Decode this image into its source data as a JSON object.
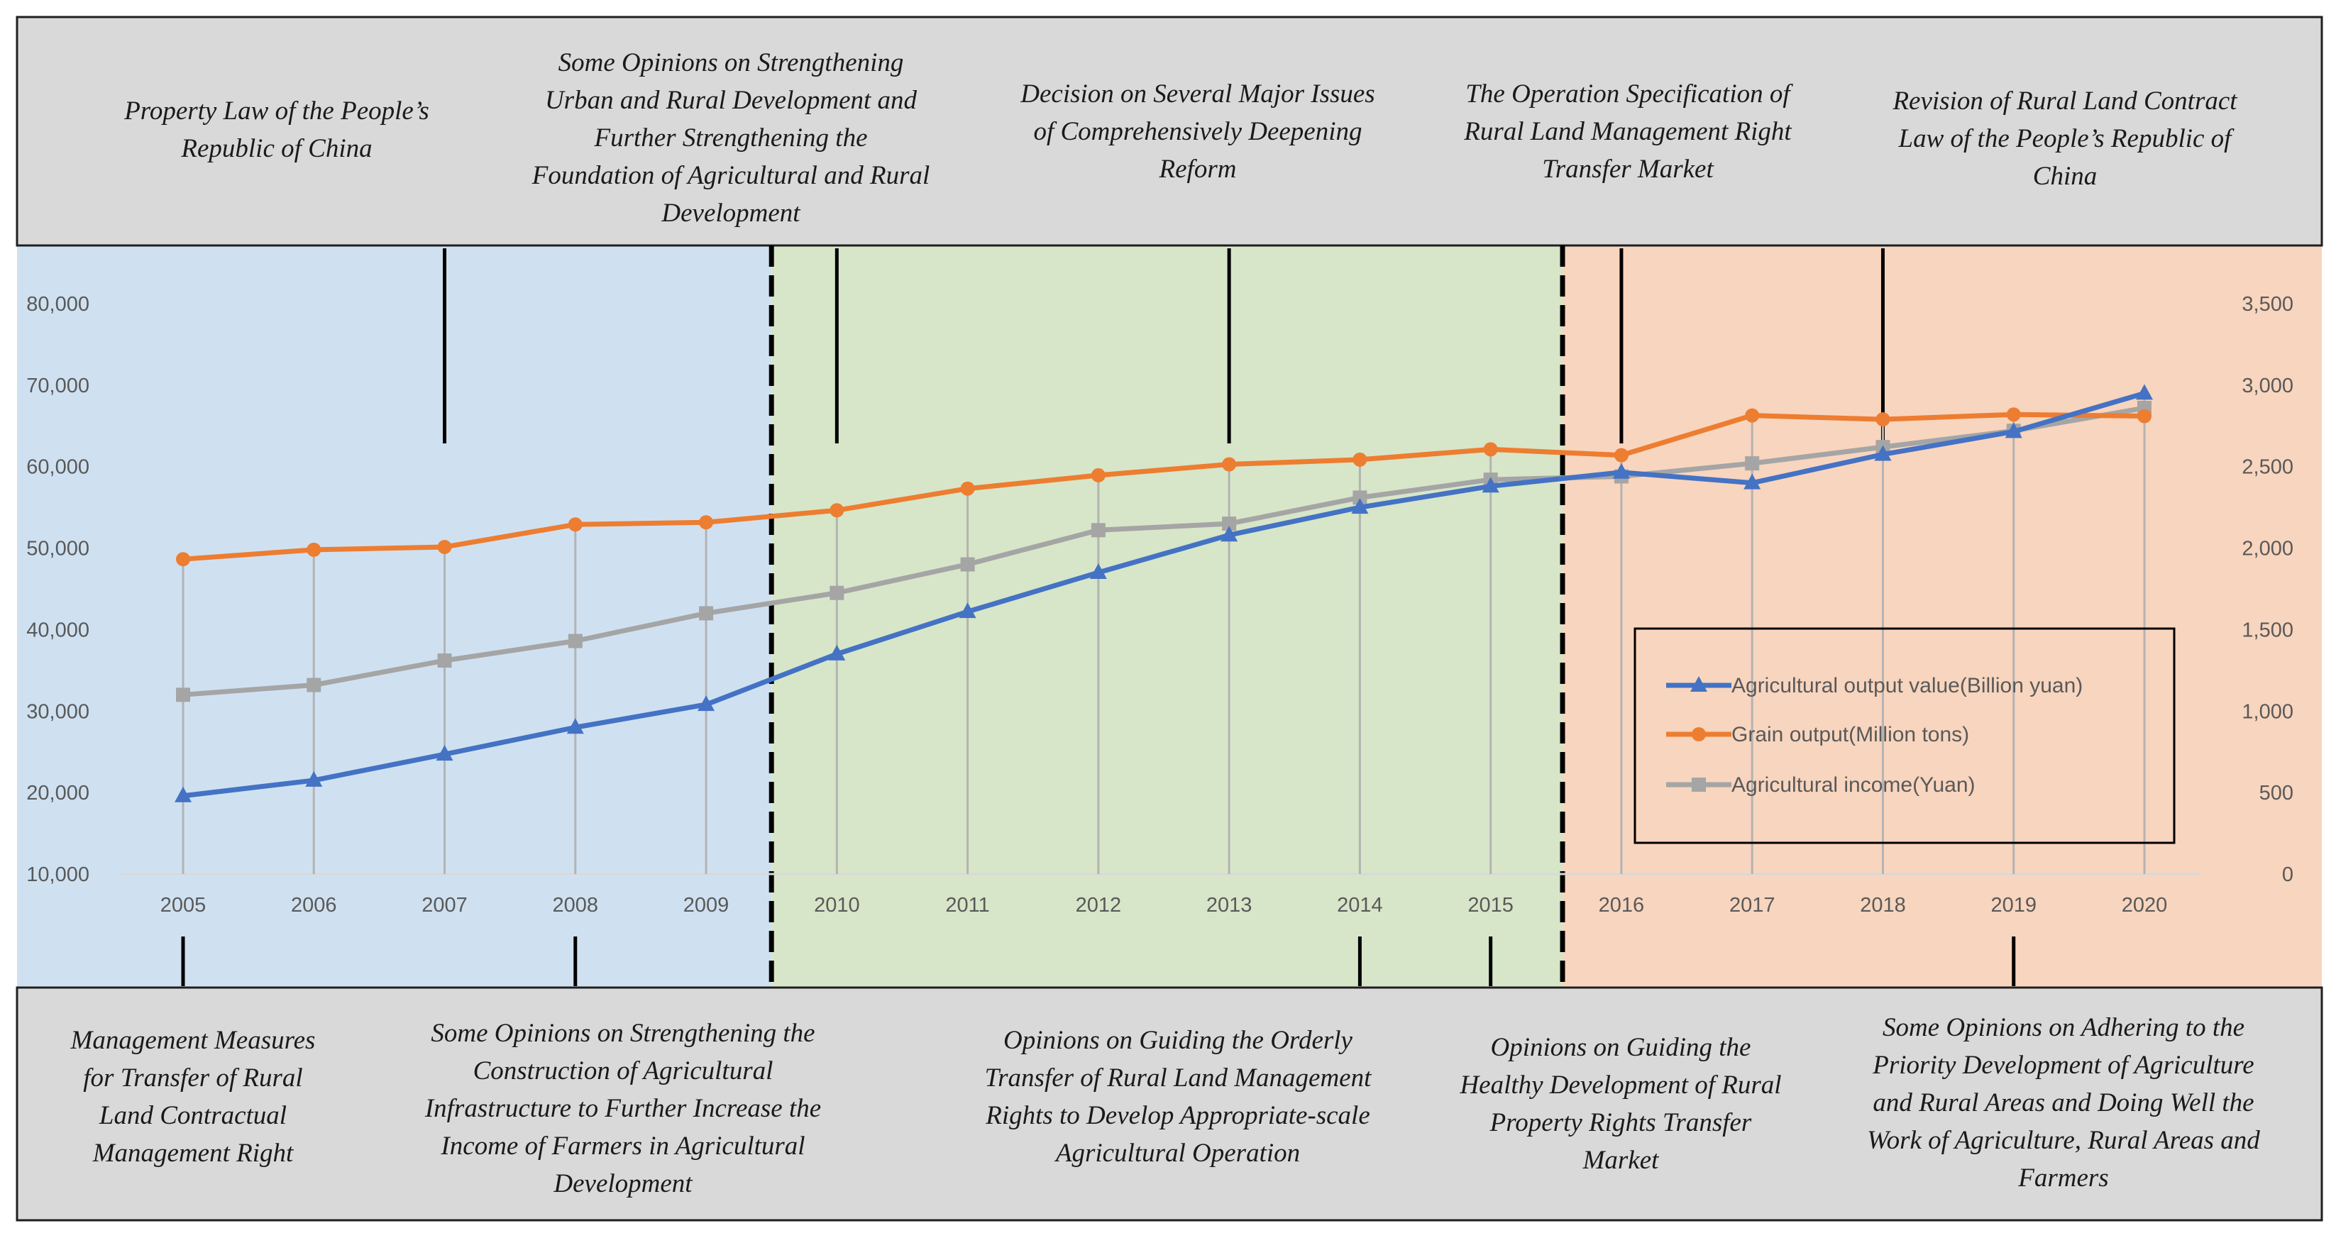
{
  "colors": {
    "era1": "#cfe1f1",
    "era2": "#d7e6c8",
    "era3": "#f8d5be",
    "policy_box": "#d9d9d9",
    "agri_value": "#4472c4",
    "grain": "#ed7d31",
    "income": "#a5a5a5"
  },
  "policies_top": [
    {
      "year": 2007,
      "lines": [
        "Property Law of the People’s",
        "Republic of China"
      ]
    },
    {
      "year": 2010,
      "lines": [
        "Some Opinions on Strengthening",
        "Urban and Rural Development and",
        "Further Strengthening the",
        "Foundation of Agricultural and Rural",
        "Development"
      ]
    },
    {
      "year": 2013,
      "lines": [
        "Decision on Several Major Issues",
        "of Comprehensively Deepening",
        "Reform"
      ]
    },
    {
      "year": 2016,
      "lines": [
        "The Operation Specification of",
        "Rural Land Management Right",
        "Transfer Market"
      ]
    },
    {
      "year": 2018,
      "lines": [
        "Revision of Rural Land Contract",
        "Law of the People’s Republic of",
        "China"
      ]
    }
  ],
  "policies_bottom": [
    {
      "year": 2005,
      "lines": [
        "Management Measures",
        "for Transfer of Rural",
        "Land Contractual",
        "Management Right"
      ]
    },
    {
      "year": 2008,
      "lines": [
        "Some Opinions on Strengthening the",
        "Construction of Agricultural",
        "Infrastructure to Further Increase the",
        "Income of Farmers in Agricultural",
        "Development"
      ]
    },
    {
      "year": 2014,
      "lines": [
        "Opinions on Guiding the Orderly",
        "Transfer of Rural Land Management",
        "Rights to Develop Appropriate-scale",
        "Agricultural Operation"
      ]
    },
    {
      "year": 2015,
      "lines": [
        "Opinions on Guiding the",
        "Healthy Development of Rural",
        "Property Rights Transfer",
        "Market"
      ]
    },
    {
      "year": 2019,
      "lines": [
        "Some Opinions on Adhering to the",
        "Priority Development of Agriculture",
        "and Rural Areas and Doing Well the",
        "Work of Agriculture, Rural Areas and",
        "Farmers"
      ]
    }
  ],
  "chart_data": {
    "type": "line",
    "title": "",
    "xlabel": "",
    "ylabel": "",
    "categories": [
      "2005",
      "2006",
      "2007",
      "2008",
      "2009",
      "2010",
      "2011",
      "2012",
      "2013",
      "2014",
      "2015",
      "2016",
      "2017",
      "2018",
      "2019",
      "2020"
    ],
    "y_left": {
      "min": 10000,
      "max": 80000,
      "ticks": [
        "10,000",
        "20,000",
        "30,000",
        "40,000",
        "50,000",
        "60,000",
        "70,000",
        "80,000"
      ]
    },
    "y_right": {
      "min": 0,
      "max": 3500,
      "ticks": [
        "0",
        "500",
        "1,000",
        "1,500",
        "2,000",
        "2,500",
        "3,000",
        "3,500"
      ]
    },
    "series": [
      {
        "name": "Agricultural output value(Billion yuan)",
        "axis": "left",
        "marker": "triangle",
        "color": "#4472c4",
        "values": [
          19600,
          21500,
          24700,
          28000,
          30800,
          37000,
          42200,
          47000,
          51600,
          55000,
          57600,
          59300,
          58000,
          61500,
          64300,
          69000
        ]
      },
      {
        "name": "Grain output(Million tons)",
        "axis": "right",
        "marker": "circle",
        "color": "#ed7d31",
        "values": [
          1932,
          1990,
          2007,
          2145,
          2158,
          2232,
          2365,
          2447,
          2514,
          2543,
          2606,
          2570,
          2814,
          2790,
          2820,
          2810
        ]
      },
      {
        "name": "Agricultural income(Yuan)",
        "axis": "right",
        "marker": "square",
        "color": "#a5a5a5",
        "values": [
          1100,
          1160,
          1310,
          1430,
          1600,
          1725,
          1900,
          2110,
          2150,
          2310,
          2420,
          2440,
          2520,
          2620,
          2720,
          2860
        ]
      }
    ],
    "periods": [
      {
        "from": 2005,
        "to": 2009.5,
        "color": "#cfe1f1"
      },
      {
        "from": 2009.5,
        "to": 2015.55,
        "color": "#d7e6c8"
      },
      {
        "from": 2015.55,
        "to": 2020,
        "color": "#f8d5be"
      }
    ],
    "legend_position": "bottom-right",
    "grid": false
  }
}
